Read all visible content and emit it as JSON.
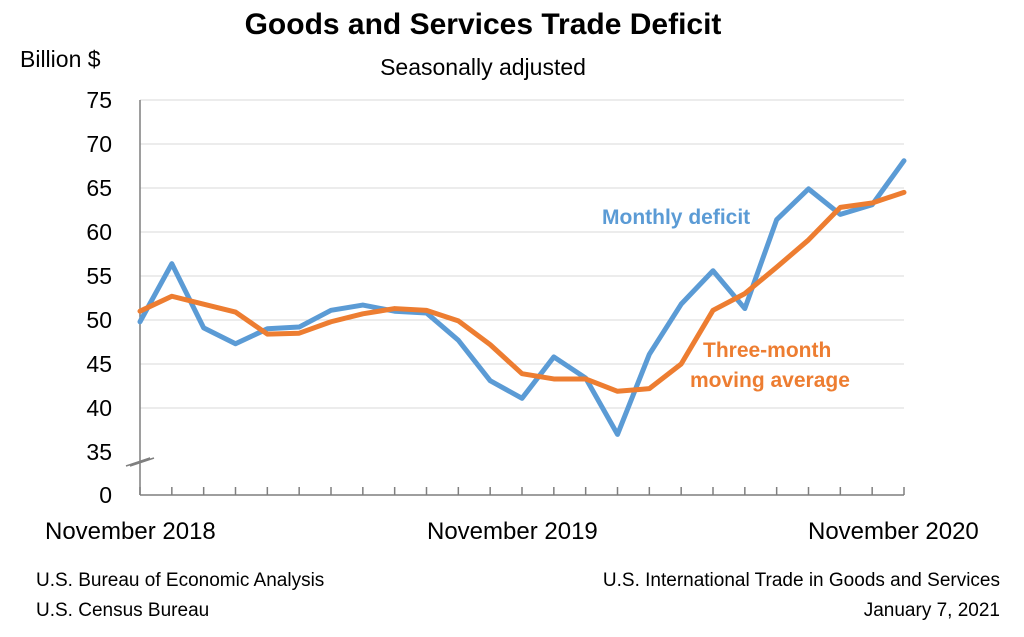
{
  "chart_data": {
    "type": "line",
    "title": "Goods and Services Trade Deficit",
    "subtitle": "Seasonally adjusted",
    "ylabel": "Billion $",
    "ylim": [
      0,
      75
    ],
    "y_axis_break": [
      0,
      35
    ],
    "yticks": [
      "75",
      "70",
      "65",
      "60",
      "55",
      "50",
      "45",
      "40",
      "35",
      "0"
    ],
    "ytick_values": [
      75,
      70,
      65,
      60,
      55,
      50,
      45,
      40,
      35,
      0
    ],
    "x": [
      "Nov 2018",
      "Dec 2018",
      "Jan 2019",
      "Feb 2019",
      "Mar 2019",
      "Apr 2019",
      "May 2019",
      "Jun 2019",
      "Jul 2019",
      "Aug 2019",
      "Sep 2019",
      "Oct 2019",
      "Nov 2019",
      "Dec 2019",
      "Jan 2020",
      "Feb 2020",
      "Mar 2020",
      "Apr 2020",
      "May 2020",
      "Jun 2020",
      "Jul 2020",
      "Aug 2020",
      "Sep 2020",
      "Oct 2020",
      "Nov 2020"
    ],
    "xtick_labels": [
      {
        "index": 0,
        "label": "November 2018"
      },
      {
        "index": 12,
        "label": "November 2019"
      },
      {
        "index": 24,
        "label": "November 2020"
      }
    ],
    "grid": true,
    "series": [
      {
        "name": "Monthly deficit",
        "color": "#5b9bd5",
        "values": [
          49.8,
          56.4,
          49.1,
          47.3,
          49.0,
          49.2,
          51.1,
          51.7,
          51.0,
          50.8,
          47.7,
          43.1,
          41.1,
          45.8,
          43.4,
          37.0,
          46.1,
          51.8,
          55.6,
          51.3,
          61.4,
          64.9,
          62.0,
          63.1,
          68.1
        ]
      },
      {
        "name": "Three-month moving average",
        "name_lines": [
          "Three-month",
          "moving average"
        ],
        "color": "#ed7d31",
        "values": [
          51.0,
          52.7,
          51.8,
          50.9,
          48.4,
          48.5,
          49.8,
          50.7,
          51.3,
          51.1,
          49.9,
          47.2,
          43.9,
          43.3,
          43.3,
          41.9,
          42.2,
          45.0,
          51.1,
          53.0,
          56.0,
          59.1,
          62.8,
          63.3,
          64.5
        ]
      }
    ]
  },
  "footer": {
    "left": [
      "U.S. Bureau of Economic Analysis",
      "U.S. Census Bureau"
    ],
    "right": [
      "U.S. International Trade in Goods and Services",
      "January 7, 2021"
    ]
  }
}
